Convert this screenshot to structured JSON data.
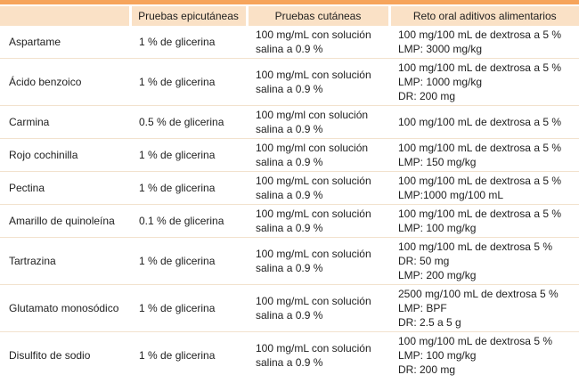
{
  "colors": {
    "top_bar": "#F6A45B",
    "header_bg": "#FAE1C6",
    "row_divider": "#F2E2CE",
    "text": "#1E1E1E",
    "header_gap": "#FFFFFF"
  },
  "table": {
    "headers": [
      "",
      "Pruebas epicutáneas",
      "Pruebas cutáneas",
      "Reto oral aditivos alimentarios"
    ],
    "rows": [
      {
        "name": "Aspartame",
        "epicutanea": "1 % de glicerina",
        "cutanea_lines": [
          "100 mg/mL con solución",
          "salina a 0.9 %"
        ],
        "reto_oral_lines": [
          "100 mg/100 mL de dextrosa a 5 %",
          "LMP: 3000 mg/kg"
        ]
      },
      {
        "name": "Ácido benzoico",
        "epicutanea": "1 % de glicerina",
        "cutanea_lines": [
          "100 mg/mL con solución",
          "salina a 0.9 %"
        ],
        "reto_oral_lines": [
          "100 mg/100 mL de dextrosa a 5 %",
          "LMP: 1000 mg/kg",
          "DR: 200 mg"
        ]
      },
      {
        "name": "Carmina",
        "epicutanea": "0.5 % de glicerina",
        "cutanea_lines": [
          "100 mg/ml con solución",
          "salina a 0.9 %"
        ],
        "reto_oral_lines": [
          "100 mg/100 mL de dextrosa a 5 %"
        ]
      },
      {
        "name": "Rojo cochinilla",
        "epicutanea": "1 % de glicerina",
        "cutanea_lines": [
          "100 mg/ml con solución",
          "salina a 0.9 %"
        ],
        "reto_oral_lines": [
          "100 mg/100 mL de dextrosa a 5 %",
          "LMP: 150 mg/kg"
        ]
      },
      {
        "name": "Pectina",
        "epicutanea": "1 % de glicerina",
        "cutanea_lines": [
          "100 mg/mL con solución",
          "salina a 0.9 %"
        ],
        "reto_oral_lines": [
          "100 mg/100 mL de dextrosa a 5 %",
          "LMP:1000 mg/100 mL"
        ]
      },
      {
        "name": "Amarillo de quinoleína",
        "epicutanea": "0.1 % de glicerina",
        "cutanea_lines": [
          "100 mg/mL con solución",
          "salina a 0.9 %"
        ],
        "reto_oral_lines": [
          "100 mg/100 mL de dextrosa a 5 %",
          "LMP: 100 mg/kg"
        ]
      },
      {
        "name": "Tartrazina",
        "epicutanea": "1 % de glicerina",
        "cutanea_lines": [
          "100 mg/mL con solución",
          "salina a 0.9 %"
        ],
        "reto_oral_lines": [
          "100 mg/100 mL de dextrosa 5 %",
          "DR: 50 mg",
          "LMP: 200 mg/kg"
        ]
      },
      {
        "name": "Glutamato monosódico",
        "epicutanea": "1 % de glicerina",
        "cutanea_lines": [
          "100 mg/mL con solución",
          "salina a 0.9 %"
        ],
        "reto_oral_lines": [
          "2500 mg/100 mL de dextrosa 5 %",
          "LMP: BPF",
          "DR: 2.5 a 5 g"
        ]
      },
      {
        "name": "Disulfito de sodio",
        "epicutanea": "1 % de glicerina",
        "cutanea_lines": [
          "100 mg/mL con solución",
          "salina a 0.9 %"
        ],
        "reto_oral_lines": [
          "100 mg/100 mL de dextrosa 5 %",
          "LMP: 100 mg/kg",
          "DR: 200 mg"
        ]
      }
    ]
  }
}
